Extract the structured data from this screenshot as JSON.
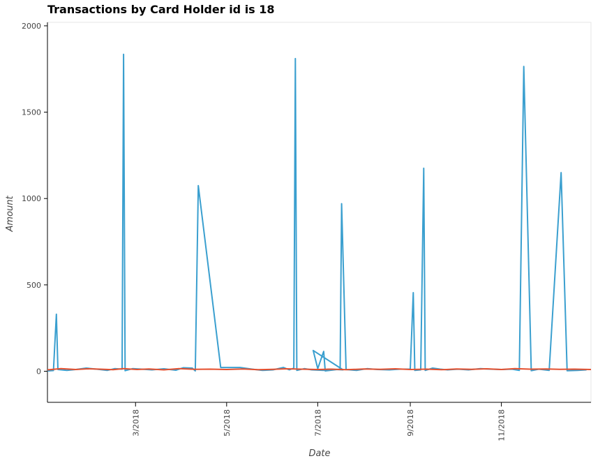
{
  "chart_data": {
    "type": "line",
    "title": "Transactions by Card Holder id is 18",
    "xlabel": "Date",
    "ylabel": "Amount",
    "xlim": [
      "2018-01-01",
      "2018-12-31"
    ],
    "ylim": [
      -180,
      2020
    ],
    "x_tick_labels": [
      "3/2018",
      "5/2018",
      "7/2018",
      "9/2018",
      "11/2018"
    ],
    "x_tick_dates": [
      "2018-03-01",
      "2018-05-01",
      "2018-07-01",
      "2018-09-01",
      "2018-11-01"
    ],
    "y_ticks": [
      0,
      500,
      1000,
      1500,
      2000
    ],
    "grid": false,
    "series": [
      {
        "color": "#3a9fcf",
        "points": [
          [
            "2018-01-01",
            2
          ],
          [
            "2018-01-05",
            4
          ],
          [
            "2018-01-07",
            330
          ],
          [
            "2018-01-08",
            10
          ],
          [
            "2018-01-14",
            5
          ],
          [
            "2018-01-20",
            10
          ],
          [
            "2018-01-27",
            18
          ],
          [
            "2018-02-03",
            12
          ],
          [
            "2018-02-10",
            5
          ],
          [
            "2018-02-15",
            15
          ],
          [
            "2018-02-20",
            12
          ],
          [
            "2018-02-21",
            1835
          ],
          [
            "2018-02-22",
            3
          ],
          [
            "2018-02-27",
            15
          ],
          [
            "2018-03-05",
            12
          ],
          [
            "2018-03-12",
            8
          ],
          [
            "2018-03-20",
            14
          ],
          [
            "2018-03-28",
            6
          ],
          [
            "2018-04-02",
            20
          ],
          [
            "2018-04-08",
            18
          ],
          [
            "2018-04-10",
            2
          ],
          [
            "2018-04-12",
            1075
          ],
          [
            "2018-04-27",
            22
          ],
          [
            "2018-05-10",
            22
          ],
          [
            "2018-05-18",
            12
          ],
          [
            "2018-05-25",
            5
          ],
          [
            "2018-06-01",
            8
          ],
          [
            "2018-06-08",
            22
          ],
          [
            "2018-06-12",
            8
          ],
          [
            "2018-06-15",
            18
          ],
          [
            "2018-06-16",
            1810
          ],
          [
            "2018-06-17",
            5
          ],
          [
            "2018-06-22",
            15
          ],
          [
            "2018-06-27",
            8
          ],
          [
            "2018-07-05",
            5
          ],
          [
            "2018-07-08",
            12
          ],
          [
            "2018-07-13",
            10
          ],
          [
            "2018-07-18",
            8
          ],
          [
            "2018-06-28",
            120
          ],
          [
            "2018-07-01",
            15
          ],
          [
            "2018-07-05",
            115
          ],
          [
            "2018-07-06",
            2
          ],
          [
            "2018-07-16",
            12
          ],
          [
            "2018-07-17",
            970
          ],
          [
            "2018-07-20",
            10
          ],
          [
            "2018-07-27",
            5
          ],
          [
            "2018-08-03",
            15
          ],
          [
            "2018-08-10",
            10
          ],
          [
            "2018-08-18",
            8
          ],
          [
            "2018-08-25",
            12
          ],
          [
            "2018-09-01",
            12
          ],
          [
            "2018-09-03",
            455
          ],
          [
            "2018-09-04",
            5
          ],
          [
            "2018-09-08",
            8
          ],
          [
            "2018-09-10",
            1175
          ],
          [
            "2018-09-11",
            5
          ],
          [
            "2018-09-16",
            18
          ],
          [
            "2018-09-21",
            12
          ],
          [
            "2018-09-26",
            8
          ],
          [
            "2018-10-03",
            12
          ],
          [
            "2018-10-10",
            8
          ],
          [
            "2018-10-18",
            15
          ],
          [
            "2018-10-25",
            12
          ],
          [
            "2018-11-01",
            10
          ],
          [
            "2018-11-08",
            12
          ],
          [
            "2018-11-13",
            5
          ],
          [
            "2018-11-16",
            1765
          ],
          [
            "2018-11-21",
            3
          ],
          [
            "2018-11-26",
            12
          ],
          [
            "2018-12-03",
            5
          ],
          [
            "2018-12-11",
            1150
          ],
          [
            "2018-12-15",
            3
          ],
          [
            "2018-12-22",
            5
          ],
          [
            "2018-12-28",
            8
          ]
        ]
      },
      {
        "color": "#e5502f",
        "points": [
          [
            "2018-01-01",
            8
          ],
          [
            "2018-01-10",
            15
          ],
          [
            "2018-01-20",
            10
          ],
          [
            "2018-01-28",
            14
          ],
          [
            "2018-02-05",
            12
          ],
          [
            "2018-02-14",
            9
          ],
          [
            "2018-02-21",
            15
          ],
          [
            "2018-03-02",
            10
          ],
          [
            "2018-03-10",
            13
          ],
          [
            "2018-03-20",
            8
          ],
          [
            "2018-03-30",
            15
          ],
          [
            "2018-04-10",
            11
          ],
          [
            "2018-04-20",
            12
          ],
          [
            "2018-05-01",
            10
          ],
          [
            "2018-05-12",
            13
          ],
          [
            "2018-05-22",
            9
          ],
          [
            "2018-06-01",
            11
          ],
          [
            "2018-06-10",
            14
          ],
          [
            "2018-06-20",
            12
          ],
          [
            "2018-07-01",
            10
          ],
          [
            "2018-07-10",
            12
          ],
          [
            "2018-07-20",
            9
          ],
          [
            "2018-08-01",
            13
          ],
          [
            "2018-08-12",
            11
          ],
          [
            "2018-08-22",
            14
          ],
          [
            "2018-09-01",
            10
          ],
          [
            "2018-09-12",
            12
          ],
          [
            "2018-09-22",
            9
          ],
          [
            "2018-10-02",
            13
          ],
          [
            "2018-10-12",
            11
          ],
          [
            "2018-10-22",
            14
          ],
          [
            "2018-11-01",
            10
          ],
          [
            "2018-11-10",
            15
          ],
          [
            "2018-11-20",
            12
          ],
          [
            "2018-12-01",
            13
          ],
          [
            "2018-12-10",
            11
          ],
          [
            "2018-12-20",
            12
          ],
          [
            "2018-12-31",
            10
          ]
        ]
      }
    ]
  }
}
